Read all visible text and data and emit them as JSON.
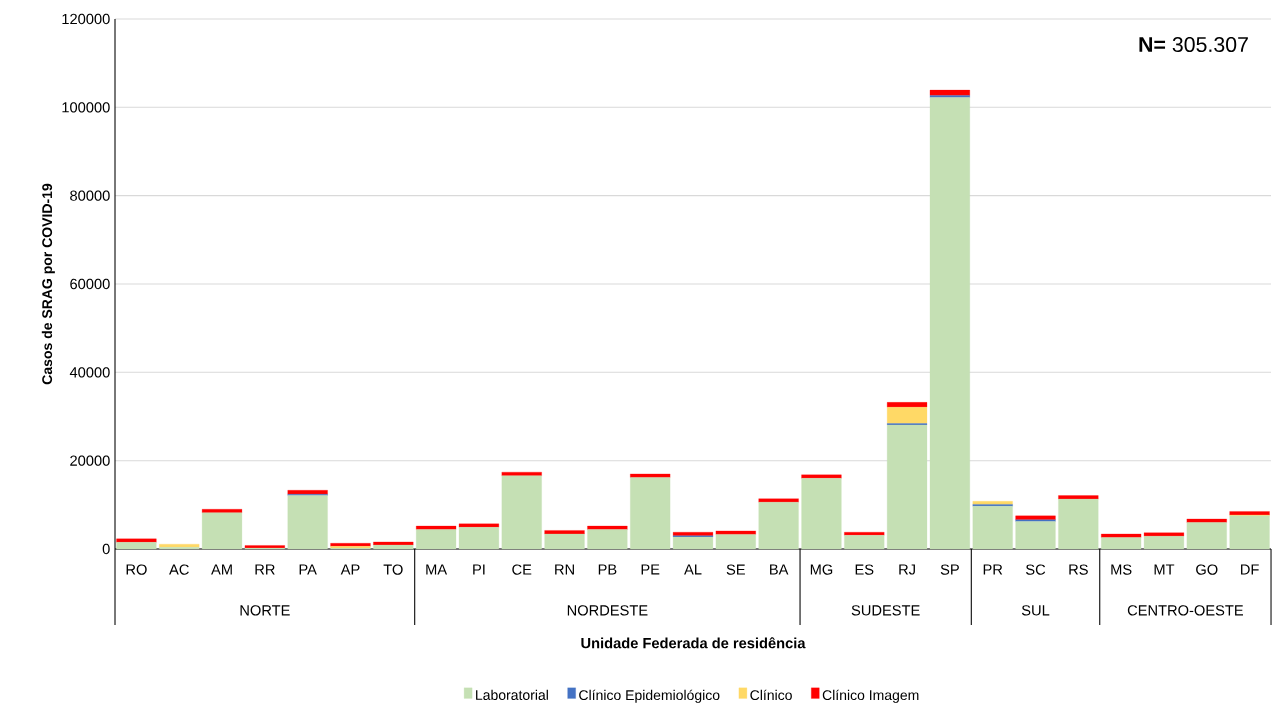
{
  "chart_data": {
    "type": "bar",
    "stacked": true,
    "xlabel": "Unidade  Federada de residência",
    "ylabel": "Casos de SRAG  por COVID-19",
    "categories": [
      "RO",
      "AC",
      "AM",
      "RR",
      "PA",
      "AP",
      "TO",
      "MA",
      "PI",
      "CE",
      "RN",
      "PB",
      "PE",
      "AL",
      "SE",
      "BA",
      "MG",
      "ES",
      "RJ",
      "SP",
      "PR",
      "SC",
      "RS",
      "MS",
      "MT",
      "GO",
      "DF"
    ],
    "series": [
      {
        "name": "Laboratorial",
        "color": "#c5e0b4",
        "values": [
          1500,
          400,
          8200,
          200,
          12100,
          200,
          900,
          4400,
          4900,
          16600,
          3400,
          4400,
          16200,
          2700,
          3300,
          10600,
          16000,
          3100,
          28100,
          102200,
          9700,
          6200,
          11300,
          2600,
          2900,
          6000,
          7500
        ]
      },
      {
        "name": "Clínico Epidemiológico",
        "color": "#4472c4",
        "values": [
          0,
          0,
          0,
          0,
          300,
          0,
          0,
          0,
          0,
          0,
          0,
          0,
          0,
          300,
          0,
          0,
          0,
          0,
          300,
          500,
          400,
          400,
          0,
          0,
          0,
          0,
          0
        ]
      },
      {
        "name": "Clínico",
        "color": "#ffd966",
        "values": [
          0,
          700,
          0,
          0,
          0,
          400,
          0,
          0,
          0,
          null,
          0,
          0,
          null,
          0,
          0,
          0,
          0,
          0,
          3700,
          0,
          700,
          0,
          0,
          0,
          0,
          0,
          200
        ]
      },
      {
        "name": "Clínico Imagem",
        "color": "#ff0000",
        "values": [
          800,
          0,
          800,
          600,
          900,
          700,
          700,
          800,
          800,
          800,
          800,
          800,
          800,
          800,
          800,
          800,
          800,
          700,
          1100,
          1200,
          0,
          900,
          800,
          800,
          800,
          800,
          800
        ]
      }
    ],
    "ylim": [
      0,
      120000
    ],
    "yticks": [
      0,
      20000,
      40000,
      60000,
      80000,
      100000,
      120000
    ],
    "grid": "y",
    "legend": "bottom",
    "annotations": [
      "**N=** 305.307",
      "NORTE",
      "NORDESTE",
      "SUDESTE",
      "SUL",
      "CENTRO-OESTE"
    ]
  }
}
